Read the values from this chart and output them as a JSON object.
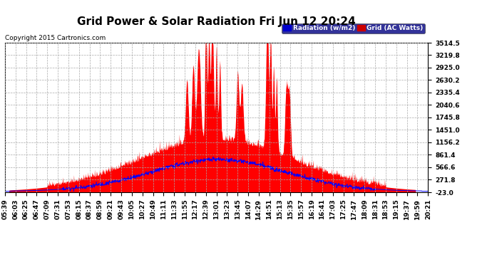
{
  "title": "Grid Power & Solar Radiation Fri Jun 12 20:24",
  "copyright": "Copyright 2015 Cartronics.com",
  "legend_radiation_label": "Radiation (w/m2)",
  "legend_grid_label": "Grid (AC Watts)",
  "legend_radiation_bg": "#0000cc",
  "legend_grid_bg": "#cc0000",
  "y_ticks": [
    -23.0,
    271.8,
    566.6,
    861.4,
    1156.2,
    1451.0,
    1745.8,
    2040.6,
    2335.4,
    2630.2,
    2925.0,
    3219.8,
    3514.5
  ],
  "y_min": -23.0,
  "y_max": 3514.5,
  "x_tick_labels": [
    "05:39",
    "06:03",
    "06:25",
    "06:47",
    "07:09",
    "07:31",
    "07:53",
    "08:15",
    "08:37",
    "08:59",
    "09:21",
    "09:43",
    "10:05",
    "10:27",
    "10:49",
    "11:11",
    "11:33",
    "11:55",
    "12:17",
    "12:39",
    "13:01",
    "13:23",
    "13:45",
    "14:07",
    "14:29",
    "14:51",
    "15:13",
    "15:35",
    "15:57",
    "16:19",
    "16:41",
    "17:03",
    "17:25",
    "17:47",
    "18:09",
    "18:31",
    "18:53",
    "19:15",
    "19:37",
    "19:59",
    "20:21"
  ],
  "background_color": "#ffffff",
  "plot_bg_color": "#ffffff",
  "grid_color": "#aaaaaa",
  "red_fill_color": "#ff0000",
  "blue_line_color": "#0000ff",
  "title_fontsize": 11,
  "tick_fontsize": 6.5,
  "copyright_fontsize": 6.5
}
